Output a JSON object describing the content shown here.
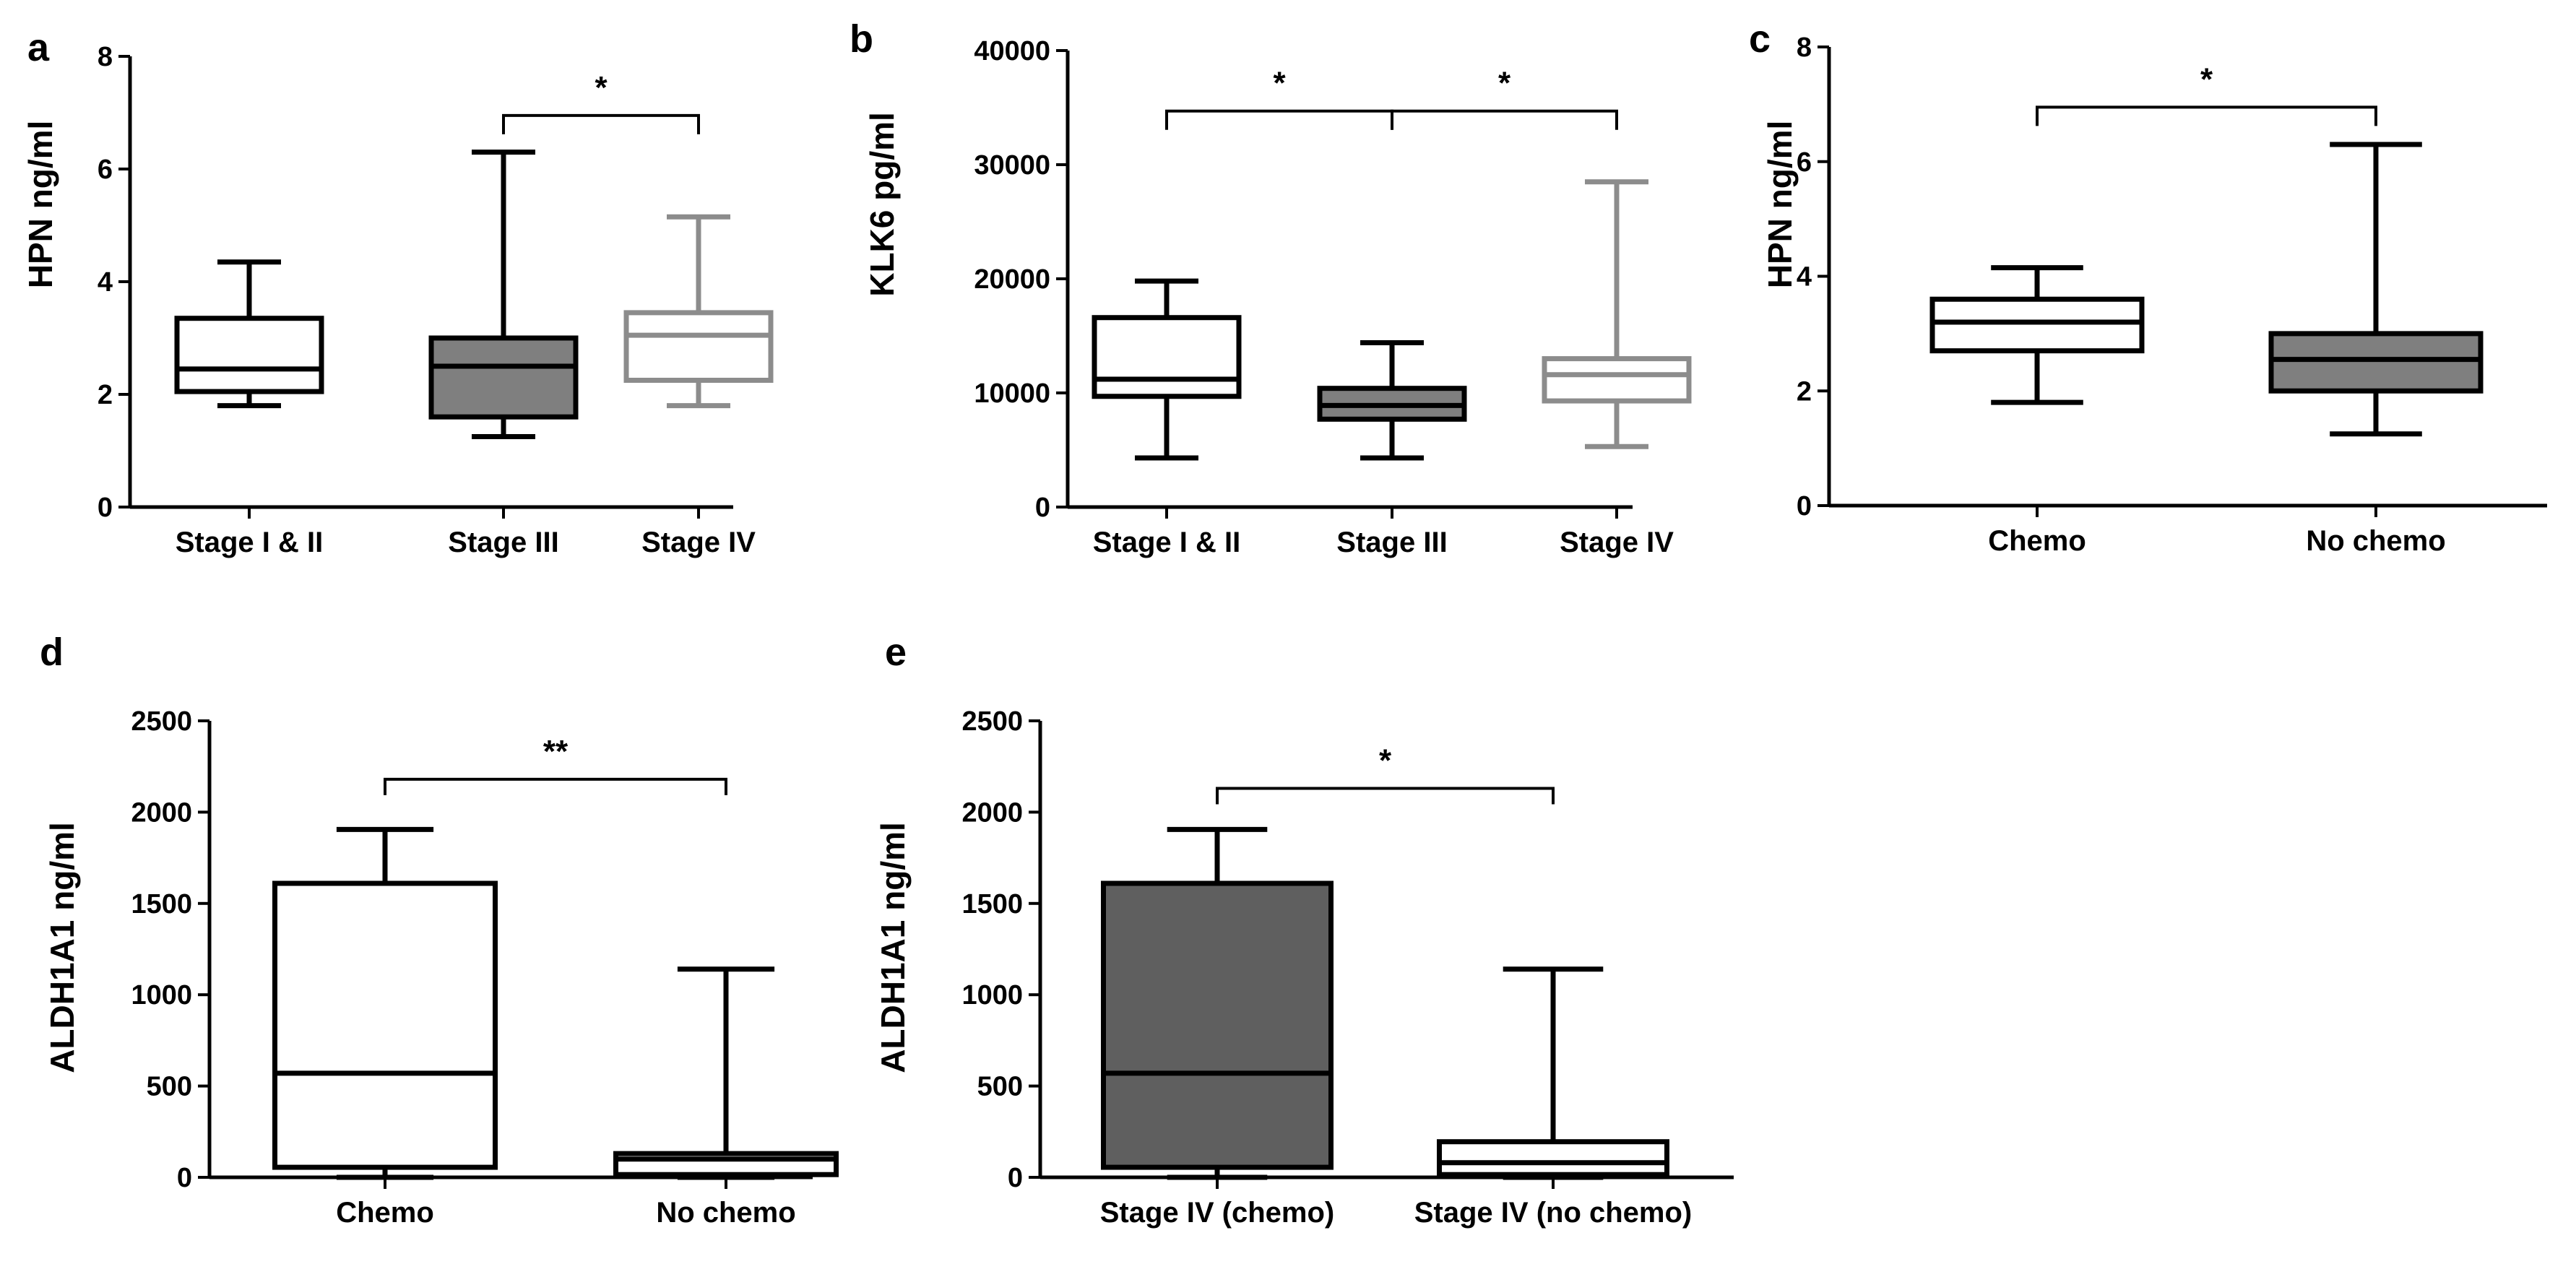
{
  "figure": {
    "background": "#ffffff",
    "line_color": "#000000"
  },
  "chart_data": [
    {
      "panel": "a",
      "type": "box",
      "ylabel": "HPN ng/ml",
      "ylim": [
        0,
        8
      ],
      "yticks": [
        0,
        2,
        4,
        6,
        8
      ],
      "categories": [
        "Stage I & II",
        "Stage III",
        "Stage IV"
      ],
      "boxes": [
        {
          "category": "Stage I & II",
          "min": 1.8,
          "q1": 2.05,
          "median": 2.45,
          "q3": 3.35,
          "max": 4.35,
          "stroke": "#000000",
          "fill": "#ffffff"
        },
        {
          "category": "Stage III",
          "min": 1.25,
          "q1": 1.6,
          "median": 2.5,
          "q3": 3.0,
          "max": 6.3,
          "stroke": "#000000",
          "fill": "#7f7f7f"
        },
        {
          "category": "Stage IV",
          "min": 1.8,
          "q1": 2.25,
          "median": 3.05,
          "q3": 3.45,
          "max": 5.15,
          "stroke": "#8c8c8c",
          "fill": "#ffffff"
        }
      ],
      "significance": [
        {
          "from": "Stage III",
          "to": "Stage IV",
          "y": 6.95,
          "label": "*"
        }
      ]
    },
    {
      "panel": "b",
      "type": "box",
      "ylabel": "KLK6 pg/ml",
      "ylim": [
        0,
        40000
      ],
      "yticks": [
        0,
        10000,
        20000,
        30000,
        40000
      ],
      "categories": [
        "Stage I & II",
        "Stage III",
        "Stage IV"
      ],
      "boxes": [
        {
          "category": "Stage I & II",
          "min": 4300,
          "q1": 9700,
          "median": 11200,
          "q3": 16600,
          "max": 19800,
          "stroke": "#000000",
          "fill": "#ffffff"
        },
        {
          "category": "Stage III",
          "min": 4300,
          "q1": 7700,
          "median": 8900,
          "q3": 10400,
          "max": 14400,
          "stroke": "#000000",
          "fill": "#7f7f7f"
        },
        {
          "category": "Stage IV",
          "min": 5300,
          "q1": 9300,
          "median": 11600,
          "q3": 13000,
          "max": 28500,
          "stroke": "#8c8c8c",
          "fill": "#ffffff"
        }
      ],
      "significance": [
        {
          "from": "Stage I & II",
          "to": "Stage III",
          "y": 34700,
          "label": "*"
        },
        {
          "from": "Stage III",
          "to": "Stage IV",
          "y": 34700,
          "label": "*"
        }
      ]
    },
    {
      "panel": "c",
      "type": "box",
      "ylabel": "HPN ng/ml",
      "ylim": [
        0,
        8
      ],
      "yticks": [
        0,
        2,
        4,
        6,
        8
      ],
      "categories": [
        "Chemo",
        "No chemo"
      ],
      "boxes": [
        {
          "category": "Chemo",
          "min": 1.8,
          "q1": 2.7,
          "median": 3.2,
          "q3": 3.6,
          "max": 4.15,
          "stroke": "#000000",
          "fill": "#ffffff"
        },
        {
          "category": "No chemo",
          "min": 1.25,
          "q1": 2.0,
          "median": 2.55,
          "q3": 3.0,
          "max": 6.3,
          "stroke": "#000000",
          "fill": "#7f7f7f"
        }
      ],
      "significance": [
        {
          "from": "Chemo",
          "to": "No chemo",
          "y": 6.95,
          "label": "*"
        }
      ]
    },
    {
      "panel": "d",
      "type": "box",
      "ylabel": "ALDH1A1 ng/ml",
      "ylim": [
        0,
        2500
      ],
      "yticks": [
        0,
        500,
        1000,
        1500,
        2000,
        2500
      ],
      "categories": [
        "Chemo",
        "No chemo"
      ],
      "boxes": [
        {
          "category": "Chemo",
          "min": 0,
          "q1": 55,
          "median": 570,
          "q3": 1610,
          "max": 1905,
          "stroke": "#000000",
          "fill": "#ffffff"
        },
        {
          "category": "No chemo",
          "min": 0,
          "q1": 15,
          "median": 100,
          "q3": 130,
          "max": 1140,
          "stroke": "#000000",
          "fill": "#ffffff"
        }
      ],
      "significance": [
        {
          "from": "Chemo",
          "to": "No chemo",
          "y": 2180,
          "label": "**"
        }
      ]
    },
    {
      "panel": "e",
      "type": "box",
      "ylabel": "ALDH1A1 ng/ml",
      "ylim": [
        0,
        2500
      ],
      "yticks": [
        0,
        500,
        1000,
        1500,
        2000,
        2500
      ],
      "categories": [
        "Stage IV (chemo)",
        "Stage IV (no chemo)"
      ],
      "boxes": [
        {
          "category": "Stage IV (chemo)",
          "min": 0,
          "q1": 55,
          "median": 570,
          "q3": 1610,
          "max": 1905,
          "stroke": "#000000",
          "fill": "#5f5f5f"
        },
        {
          "category": "Stage IV (no chemo)",
          "min": 0,
          "q1": 15,
          "median": 80,
          "q3": 195,
          "max": 1140,
          "stroke": "#000000",
          "fill": "#ffffff"
        }
      ],
      "significance": [
        {
          "from": "Stage IV (chemo)",
          "to": "Stage IV (no chemo)",
          "y": 2130,
          "label": "*"
        }
      ]
    }
  ]
}
